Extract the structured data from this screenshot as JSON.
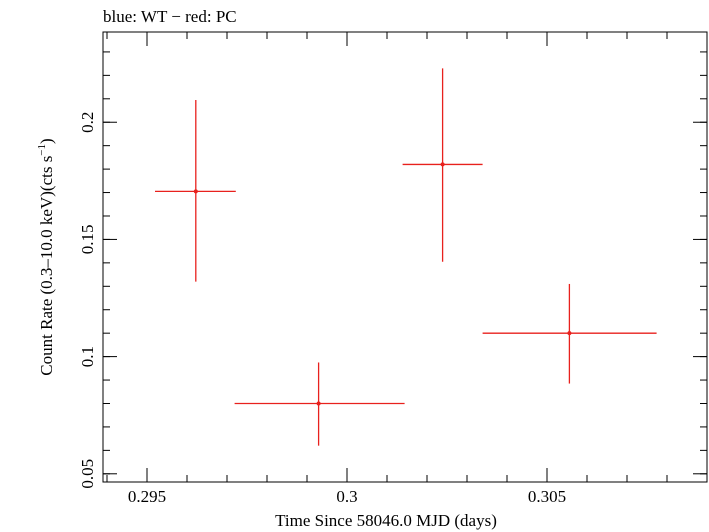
{
  "chart_data": {
    "type": "scatter",
    "title": "blue: WT − red: PC",
    "xlabel": "Time Since 58046.0 MJD (days)",
    "ylabel_main": "Count Rate (0.3–10.0 keV)(cts s",
    "ylabel_sup": "−1",
    "ylabel_close": ")",
    "xlim": [
      0.2939,
      0.309
    ],
    "ylim": [
      0.0465,
      0.2385
    ],
    "xticks": [
      0.295,
      0.3,
      0.305
    ],
    "xtick_labels": [
      "0.295",
      "0.3",
      "0.305"
    ],
    "yticks": [
      0.05,
      0.1,
      0.15,
      0.2
    ],
    "ytick_labels": [
      "0.05",
      "0.1",
      "0.15",
      "0.2"
    ],
    "series": [
      {
        "name": "PC",
        "color": "#e8211d",
        "points": [
          {
            "x": 0.29622,
            "xerr_lo": 0.00102,
            "xerr_hi": 0.001,
            "y": 0.1705,
            "yerr_lo": 0.0385,
            "yerr_hi": 0.039
          },
          {
            "x": 0.29929,
            "xerr_lo": 0.0021,
            "xerr_hi": 0.00215,
            "y": 0.08,
            "yerr_lo": 0.018,
            "yerr_hi": 0.0175
          },
          {
            "x": 0.30239,
            "xerr_lo": 0.001,
            "xerr_hi": 0.001,
            "y": 0.182,
            "yerr_lo": 0.0415,
            "yerr_hi": 0.041
          },
          {
            "x": 0.30556,
            "xerr_lo": 0.00217,
            "xerr_hi": 0.00218,
            "y": 0.11,
            "yerr_lo": 0.0215,
            "yerr_hi": 0.021
          }
        ]
      }
    ]
  }
}
